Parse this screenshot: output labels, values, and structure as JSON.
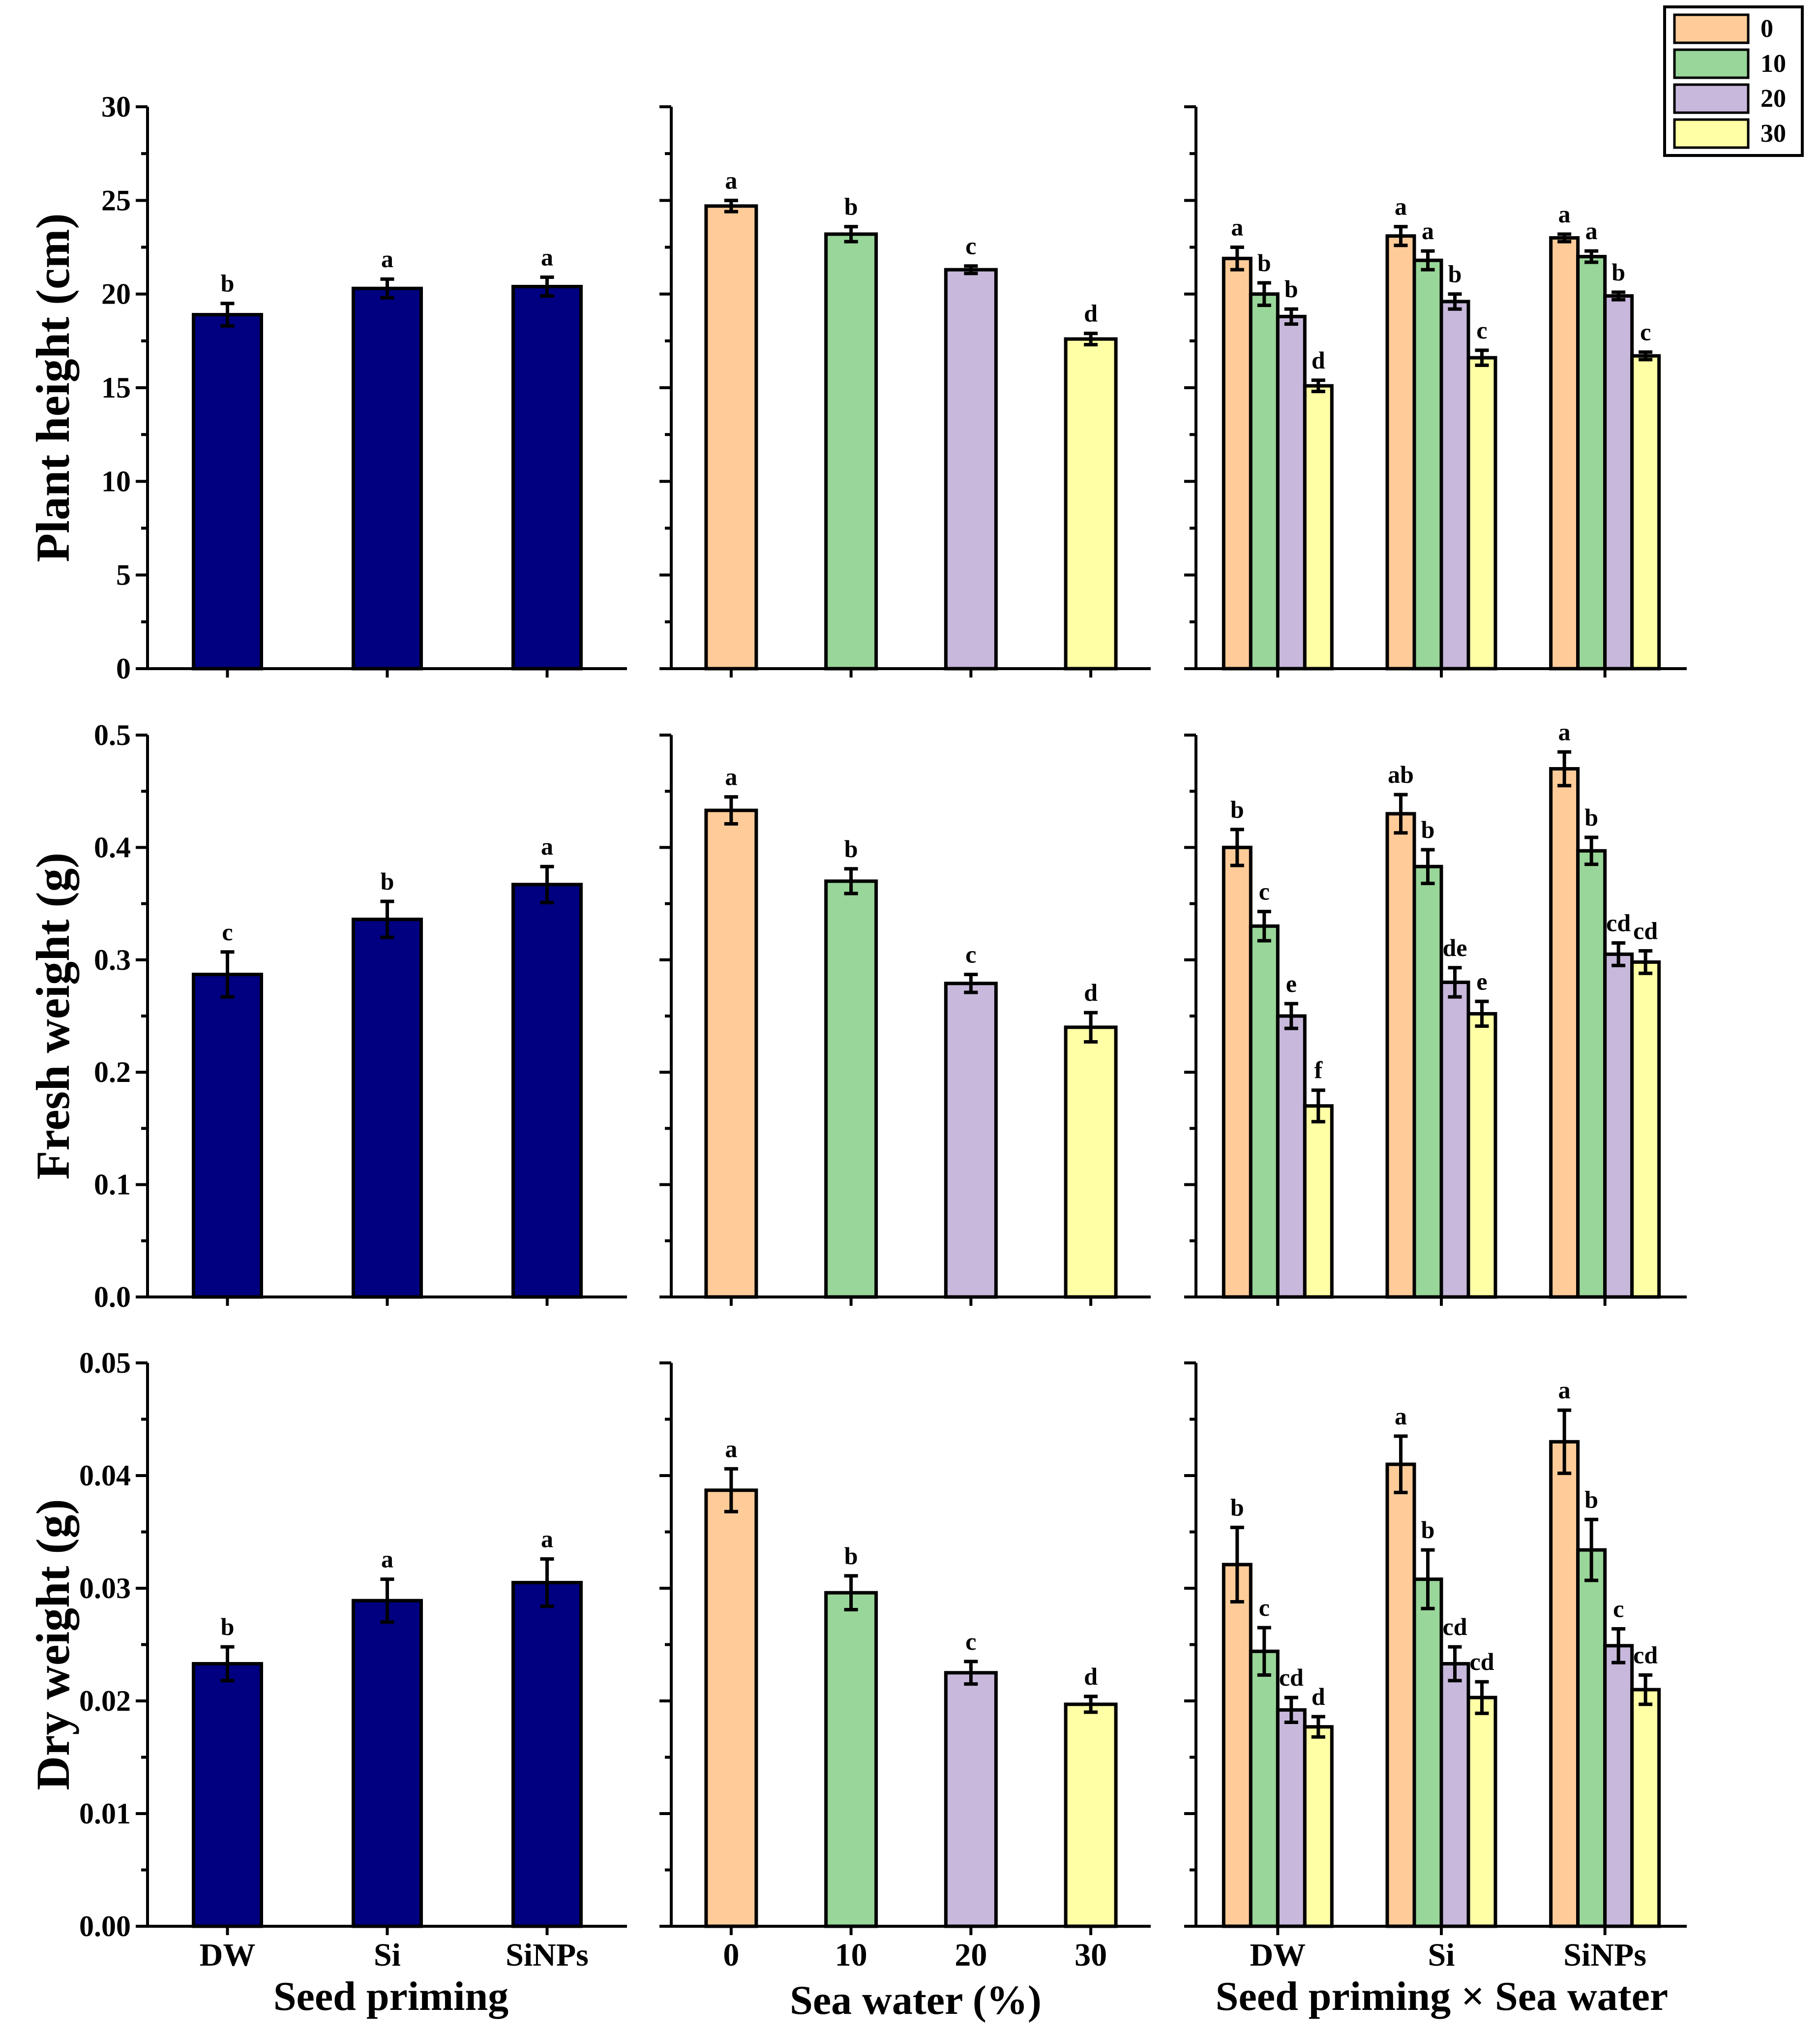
{
  "legend": {
    "title": "",
    "entries": [
      {
        "label": "0",
        "color": "#FFCC99"
      },
      {
        "label": "10",
        "color": "#99D699"
      },
      {
        "label": "20",
        "color": "#C8B8DC"
      },
      {
        "label": "30",
        "color": "#FFFFA6"
      }
    ]
  },
  "x_axis_titles": [
    "Seed priming",
    "Sea water (%)",
    "Seed priming × Sea water"
  ],
  "chart_data": [
    {
      "type": "bar",
      "title": "",
      "ylabel": "Plant height (cm)",
      "ylim": [
        0,
        30
      ],
      "yticks": [
        0,
        5,
        10,
        15,
        20,
        25,
        30
      ],
      "ytick_labels": [
        "0",
        "5",
        "10",
        "15",
        "20",
        "25",
        "30"
      ],
      "panels": [
        {
          "xlabel": "Seed priming",
          "categories": [
            "DW",
            "Si",
            "SiNPs"
          ],
          "values": [
            18.9,
            20.3,
            20.4
          ],
          "errors": [
            0.6,
            0.5,
            0.5
          ],
          "letters": [
            "b",
            "a",
            "a"
          ],
          "color": "#000080"
        },
        {
          "xlabel": "Sea water (%)",
          "categories": [
            "0",
            "10",
            "20",
            "30"
          ],
          "values": [
            24.7,
            23.2,
            21.3,
            17.6
          ],
          "errors": [
            0.3,
            0.4,
            0.2,
            0.3
          ],
          "letters": [
            "a",
            "b",
            "c",
            "d"
          ]
        },
        {
          "xlabel": "Seed priming × Sea water",
          "categories": [
            "DW",
            "Si",
            "SiNPs"
          ],
          "series": [
            {
              "name": "0",
              "values": [
                21.9,
                23.1,
                23.0
              ],
              "errors": [
                0.6,
                0.5,
                0.2
              ],
              "letters": [
                "a",
                "a",
                "a"
              ]
            },
            {
              "name": "10",
              "values": [
                20.0,
                21.8,
                22.0
              ],
              "errors": [
                0.6,
                0.5,
                0.3
              ],
              "letters": [
                "b",
                "a",
                "a"
              ]
            },
            {
              "name": "20",
              "values": [
                18.8,
                19.6,
                19.9
              ],
              "errors": [
                0.4,
                0.4,
                0.2
              ],
              "letters": [
                "b",
                "b",
                "b"
              ]
            },
            {
              "name": "30",
              "values": [
                15.1,
                16.6,
                16.7
              ],
              "errors": [
                0.3,
                0.4,
                0.2
              ],
              "letters": [
                "d",
                "c",
                "c"
              ]
            }
          ]
        }
      ]
    },
    {
      "type": "bar",
      "title": "",
      "ylabel": "Fresh weight (g)",
      "ylim": [
        0,
        0.5
      ],
      "yticks": [
        0,
        0.1,
        0.2,
        0.3,
        0.4,
        0.5
      ],
      "ytick_labels": [
        "0.0",
        "0.1",
        "0.2",
        "0.3",
        "0.4",
        "0.5"
      ],
      "panels": [
        {
          "xlabel": "Seed priming",
          "categories": [
            "DW",
            "Si",
            "SiNPs"
          ],
          "values": [
            0.287,
            0.336,
            0.367
          ],
          "errors": [
            0.02,
            0.016,
            0.016
          ],
          "letters": [
            "c",
            "b",
            "a"
          ],
          "color": "#000080"
        },
        {
          "xlabel": "Sea water (%)",
          "categories": [
            "0",
            "10",
            "20",
            "30"
          ],
          "values": [
            0.433,
            0.37,
            0.279,
            0.24
          ],
          "errors": [
            0.012,
            0.011,
            0.008,
            0.013
          ],
          "letters": [
            "a",
            "b",
            "c",
            "d"
          ]
        },
        {
          "xlabel": "Seed priming × Sea water",
          "categories": [
            "DW",
            "Si",
            "SiNPs"
          ],
          "series": [
            {
              "name": "0",
              "values": [
                0.4,
                0.43,
                0.47
              ],
              "errors": [
                0.016,
                0.017,
                0.015
              ],
              "letters": [
                "b",
                "ab",
                "a"
              ]
            },
            {
              "name": "10",
              "values": [
                0.33,
                0.383,
                0.397
              ],
              "errors": [
                0.013,
                0.015,
                0.012
              ],
              "letters": [
                "c",
                "b",
                "b"
              ]
            },
            {
              "name": "20",
              "values": [
                0.25,
                0.28,
                0.305
              ],
              "errors": [
                0.011,
                0.013,
                0.01
              ],
              "letters": [
                "e",
                "de",
                "cd"
              ]
            },
            {
              "name": "30",
              "values": [
                0.17,
                0.252,
                0.298
              ],
              "errors": [
                0.014,
                0.011,
                0.01
              ],
              "letters": [
                "f",
                "e",
                "cd"
              ]
            }
          ]
        }
      ]
    },
    {
      "type": "bar",
      "title": "",
      "ylabel": "Dry weight (g)",
      "ylim": [
        0,
        0.05
      ],
      "yticks": [
        0,
        0.01,
        0.02,
        0.03,
        0.04,
        0.05
      ],
      "ytick_labels": [
        "0.00",
        "0.01",
        "0.02",
        "0.03",
        "0.04",
        "0.05"
      ],
      "panels": [
        {
          "xlabel": "Seed priming",
          "categories": [
            "DW",
            "Si",
            "SiNPs"
          ],
          "values": [
            0.0233,
            0.0289,
            0.0305
          ],
          "errors": [
            0.0015,
            0.0019,
            0.0021
          ],
          "letters": [
            "b",
            "a",
            "a"
          ],
          "color": "#000080"
        },
        {
          "xlabel": "Sea water (%)",
          "categories": [
            "0",
            "10",
            "20",
            "30"
          ],
          "values": [
            0.0387,
            0.0296,
            0.0225,
            0.0197
          ],
          "errors": [
            0.0019,
            0.0015,
            0.001,
            0.0007
          ],
          "letters": [
            "a",
            "b",
            "c",
            "d"
          ]
        },
        {
          "xlabel": "Seed priming × Sea water",
          "categories": [
            "DW",
            "Si",
            "SiNPs"
          ],
          "series": [
            {
              "name": "0",
              "values": [
                0.0321,
                0.041,
                0.043
              ],
              "errors": [
                0.0033,
                0.0025,
                0.0028
              ],
              "letters": [
                "b",
                "a",
                "a"
              ]
            },
            {
              "name": "10",
              "values": [
                0.0244,
                0.0308,
                0.0334
              ],
              "errors": [
                0.0021,
                0.0026,
                0.0027
              ],
              "letters": [
                "c",
                "b",
                "b"
              ]
            },
            {
              "name": "20",
              "values": [
                0.0192,
                0.0233,
                0.0249
              ],
              "errors": [
                0.0011,
                0.0015,
                0.0015
              ],
              "letters": [
                "cd",
                "cd",
                "c"
              ]
            },
            {
              "name": "30",
              "values": [
                0.0177,
                0.0203,
                0.021
              ],
              "errors": [
                0.0009,
                0.0014,
                0.0013
              ],
              "letters": [
                "d",
                "cd",
                "cd"
              ]
            }
          ]
        }
      ]
    }
  ]
}
